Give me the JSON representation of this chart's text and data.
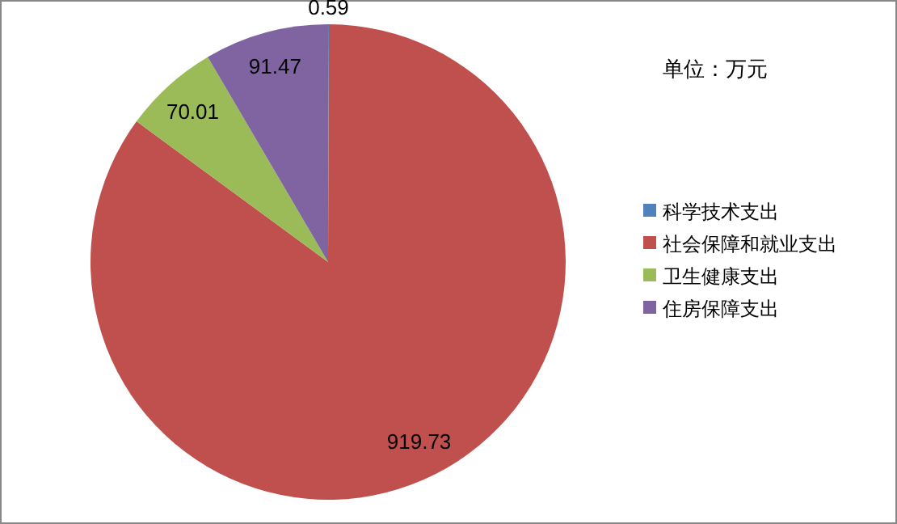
{
  "chart_data": {
    "type": "pie",
    "categories": [
      "科学技术支出",
      "社会保障和就业支出",
      "卫生健康支出",
      "住房保障支出"
    ],
    "values": [
      0.59,
      919.73,
      70.01,
      91.47
    ],
    "colors": [
      "#4f81bd",
      "#c0504d",
      "#9bbb59",
      "#8064a2"
    ],
    "data_labels": true,
    "legend": "right",
    "annotations": [
      "单位：万元"
    ]
  }
}
